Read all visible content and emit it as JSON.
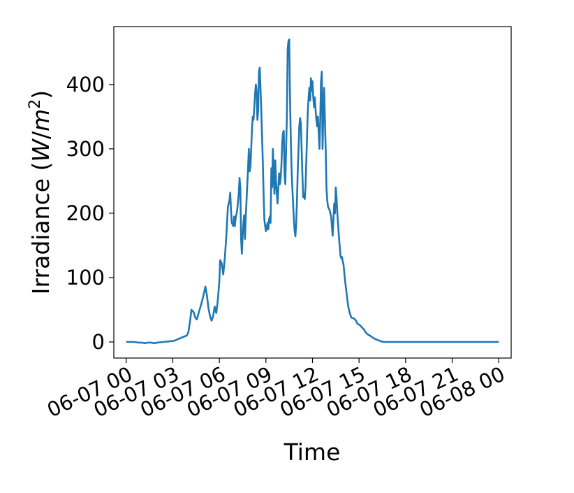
{
  "chart_data": {
    "type": "line",
    "xlabel": "Time",
    "ylabel_main": "Irradiance (",
    "ylabel_unit_w": "W",
    "ylabel_unit_sep": "/",
    "ylabel_unit_m": "m",
    "ylabel_unit_exp": "2",
    "ylabel_close": ")",
    "x_range_hours": [
      -0.8,
      24.8
    ],
    "ylim": [
      -25,
      490
    ],
    "x_ticks": [
      {
        "hour": 0,
        "label": "06-07 00"
      },
      {
        "hour": 3,
        "label": "06-07 03"
      },
      {
        "hour": 6,
        "label": "06-07 06"
      },
      {
        "hour": 9,
        "label": "06-07 09"
      },
      {
        "hour": 12,
        "label": "06-07 12"
      },
      {
        "hour": 15,
        "label": "06-07 15"
      },
      {
        "hour": 18,
        "label": "06-07 18"
      },
      {
        "hour": 21,
        "label": "06-07 21"
      },
      {
        "hour": 24,
        "label": "06-08 00"
      }
    ],
    "y_ticks": [
      {
        "value": 0,
        "label": "0"
      },
      {
        "value": 100,
        "label": "100"
      },
      {
        "value": 200,
        "label": "200"
      },
      {
        "value": 300,
        "label": "300"
      },
      {
        "value": 400,
        "label": "400"
      }
    ],
    "grid": false,
    "series": [
      {
        "color": "#1f77b4",
        "points": [
          [
            0.0,
            0
          ],
          [
            0.5,
            0
          ],
          [
            0.8,
            -1
          ],
          [
            1.0,
            -1
          ],
          [
            1.2,
            -2
          ],
          [
            1.4,
            -1
          ],
          [
            1.6,
            -1
          ],
          [
            1.8,
            -2
          ],
          [
            2.0,
            -1
          ],
          [
            2.4,
            0
          ],
          [
            2.8,
            1
          ],
          [
            3.1,
            2
          ],
          [
            3.3,
            4
          ],
          [
            3.5,
            6
          ],
          [
            3.7,
            8
          ],
          [
            3.9,
            10
          ],
          [
            4.0,
            15
          ],
          [
            4.1,
            30
          ],
          [
            4.2,
            50
          ],
          [
            4.35,
            46
          ],
          [
            4.45,
            38
          ],
          [
            4.55,
            35
          ],
          [
            4.7,
            48
          ],
          [
            4.85,
            60
          ],
          [
            5.0,
            75
          ],
          [
            5.1,
            86
          ],
          [
            5.2,
            72
          ],
          [
            5.3,
            52
          ],
          [
            5.4,
            40
          ],
          [
            5.5,
            33
          ],
          [
            5.6,
            40
          ],
          [
            5.7,
            55
          ],
          [
            5.8,
            45
          ],
          [
            5.9,
            65
          ],
          [
            6.0,
            95
          ],
          [
            6.05,
            127
          ],
          [
            6.15,
            122
          ],
          [
            6.25,
            105
          ],
          [
            6.35,
            130
          ],
          [
            6.45,
            165
          ],
          [
            6.55,
            210
          ],
          [
            6.65,
            220
          ],
          [
            6.7,
            232
          ],
          [
            6.75,
            205
          ],
          [
            6.8,
            185
          ],
          [
            6.9,
            180
          ],
          [
            6.95,
            195
          ],
          [
            7.0,
            180
          ],
          [
            7.05,
            192
          ],
          [
            7.15,
            205
          ],
          [
            7.25,
            230
          ],
          [
            7.3,
            255
          ],
          [
            7.35,
            240
          ],
          [
            7.4,
            160
          ],
          [
            7.45,
            137
          ],
          [
            7.5,
            165
          ],
          [
            7.55,
            185
          ],
          [
            7.6,
            197
          ],
          [
            7.65,
            160
          ],
          [
            7.7,
            195
          ],
          [
            7.75,
            220
          ],
          [
            7.8,
            245
          ],
          [
            7.85,
            270
          ],
          [
            7.9,
            300
          ],
          [
            7.95,
            265
          ],
          [
            8.0,
            272
          ],
          [
            8.05,
            300
          ],
          [
            8.1,
            330
          ],
          [
            8.15,
            350
          ],
          [
            8.2,
            345
          ],
          [
            8.25,
            365
          ],
          [
            8.3,
            385
          ],
          [
            8.35,
            400
          ],
          [
            8.4,
            390
          ],
          [
            8.45,
            345
          ],
          [
            8.5,
            360
          ],
          [
            8.55,
            420
          ],
          [
            8.6,
            426
          ],
          [
            8.65,
            395
          ],
          [
            8.7,
            360
          ],
          [
            8.75,
            320
          ],
          [
            8.8,
            280
          ],
          [
            8.85,
            230
          ],
          [
            8.9,
            190
          ],
          [
            8.95,
            180
          ],
          [
            9.0,
            172
          ],
          [
            9.05,
            178
          ],
          [
            9.1,
            185
          ],
          [
            9.15,
            175
          ],
          [
            9.2,
            190
          ],
          [
            9.25,
            195
          ],
          [
            9.3,
            185
          ],
          [
            9.35,
            270
          ],
          [
            9.4,
            240
          ],
          [
            9.45,
            300
          ],
          [
            9.5,
            260
          ],
          [
            9.55,
            230
          ],
          [
            9.6,
            282
          ],
          [
            9.65,
            250
          ],
          [
            9.7,
            230
          ],
          [
            9.75,
            215
          ],
          [
            9.8,
            240
          ],
          [
            9.85,
            262
          ],
          [
            9.9,
            245
          ],
          [
            9.95,
            255
          ],
          [
            10.0,
            275
          ],
          [
            10.05,
            310
          ],
          [
            10.1,
            325
          ],
          [
            10.15,
            328
          ],
          [
            10.2,
            260
          ],
          [
            10.25,
            245
          ],
          [
            10.3,
            300
          ],
          [
            10.35,
            350
          ],
          [
            10.4,
            455
          ],
          [
            10.45,
            467
          ],
          [
            10.5,
            470
          ],
          [
            10.55,
            380
          ],
          [
            10.6,
            320
          ],
          [
            10.65,
            270
          ],
          [
            10.7,
            240
          ],
          [
            10.75,
            215
          ],
          [
            10.8,
            190
          ],
          [
            10.85,
            172
          ],
          [
            10.9,
            164
          ],
          [
            10.95,
            185
          ],
          [
            11.0,
            220
          ],
          [
            11.05,
            265
          ],
          [
            11.1,
            300
          ],
          [
            11.15,
            335
          ],
          [
            11.2,
            348
          ],
          [
            11.25,
            340
          ],
          [
            11.3,
            300
          ],
          [
            11.35,
            260
          ],
          [
            11.4,
            225
          ],
          [
            11.45,
            230
          ],
          [
            11.5,
            222
          ],
          [
            11.55,
            240
          ],
          [
            11.6,
            280
          ],
          [
            11.65,
            320
          ],
          [
            11.7,
            360
          ],
          [
            11.75,
            380
          ],
          [
            11.8,
            395
          ],
          [
            11.85,
            375
          ],
          [
            11.9,
            410
          ],
          [
            11.95,
            390
          ],
          [
            12.0,
            405
          ],
          [
            12.05,
            380
          ],
          [
            12.1,
            365
          ],
          [
            12.15,
            380
          ],
          [
            12.2,
            360
          ],
          [
            12.25,
            345
          ],
          [
            12.3,
            335
          ],
          [
            12.35,
            350
          ],
          [
            12.4,
            325
          ],
          [
            12.45,
            300
          ],
          [
            12.5,
            345
          ],
          [
            12.55,
            405
          ],
          [
            12.6,
            420
          ],
          [
            12.65,
            300
          ],
          [
            12.7,
            360
          ],
          [
            12.75,
            395
          ],
          [
            12.8,
            345
          ],
          [
            12.85,
            300
          ],
          [
            12.9,
            240
          ],
          [
            12.95,
            220
          ],
          [
            13.0,
            210
          ],
          [
            13.1,
            205
          ],
          [
            13.2,
            195
          ],
          [
            13.3,
            165
          ],
          [
            13.4,
            215
          ],
          [
            13.45,
            200
          ],
          [
            13.5,
            240
          ],
          [
            13.55,
            225
          ],
          [
            13.6,
            200
          ],
          [
            13.7,
            165
          ],
          [
            13.75,
            150
          ],
          [
            13.8,
            135
          ],
          [
            13.85,
            130
          ],
          [
            13.9,
            132
          ],
          [
            13.95,
            125
          ],
          [
            14.0,
            120
          ],
          [
            14.1,
            95
          ],
          [
            14.2,
            75
          ],
          [
            14.3,
            55
          ],
          [
            14.4,
            45
          ],
          [
            14.5,
            38
          ],
          [
            14.6,
            37
          ],
          [
            14.7,
            36
          ],
          [
            14.8,
            33
          ],
          [
            14.9,
            28
          ],
          [
            15.0,
            27
          ],
          [
            15.1,
            25
          ],
          [
            15.2,
            22
          ],
          [
            15.3,
            20
          ],
          [
            15.4,
            16
          ],
          [
            15.5,
            13
          ],
          [
            15.6,
            11
          ],
          [
            15.7,
            10
          ],
          [
            15.8,
            8
          ],
          [
            16.0,
            5
          ],
          [
            16.2,
            3
          ],
          [
            16.4,
            1
          ],
          [
            16.6,
            0
          ],
          [
            17.0,
            0
          ],
          [
            17.5,
            0
          ],
          [
            18.0,
            0
          ],
          [
            18.5,
            0
          ],
          [
            19.0,
            0
          ],
          [
            19.5,
            0
          ],
          [
            20.0,
            0
          ],
          [
            20.5,
            0
          ],
          [
            21.0,
            0
          ],
          [
            21.5,
            0
          ],
          [
            22.0,
            0
          ],
          [
            22.5,
            0
          ],
          [
            23.0,
            0
          ],
          [
            23.5,
            0
          ],
          [
            24.0,
            0
          ]
        ]
      }
    ]
  }
}
